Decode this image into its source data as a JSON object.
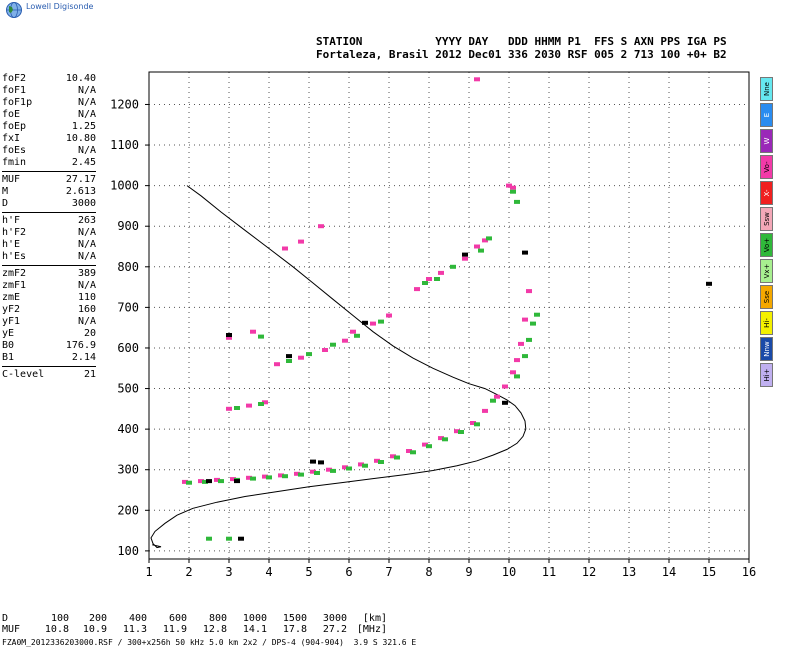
{
  "logo": {
    "text": "Lowell Digisonde",
    "icon": "globe-icon",
    "color": "#2a5db0"
  },
  "header": {
    "line1": "STATION           YYYY DAY   DDD HHMM P1  FFS S AXN PPS IGA PS",
    "line2": "Fortaleza, Brasil 2012 Dec01 336 2030 RSF 005 2 713 100 +0+ B2"
  },
  "params": [
    [
      {
        "name": "foF2",
        "value": "10.40"
      },
      {
        "name": "foF1",
        "value": "N/A"
      },
      {
        "name": "foF1p",
        "value": "N/A"
      },
      {
        "name": "foE",
        "value": "N/A"
      },
      {
        "name": "foEp",
        "value": "1.25"
      },
      {
        "name": "fxI",
        "value": "10.80"
      },
      {
        "name": "foEs",
        "value": "N/A"
      },
      {
        "name": "fmin",
        "value": "2.45"
      }
    ],
    [
      {
        "name": "MUF",
        "value": "27.17"
      },
      {
        "name": "M",
        "value": "2.613"
      },
      {
        "name": "D",
        "value": "3000"
      }
    ],
    [
      {
        "name": "h'F",
        "value": "263"
      },
      {
        "name": "h'F2",
        "value": "N/A"
      },
      {
        "name": "h'E",
        "value": "N/A"
      },
      {
        "name": "h'Es",
        "value": "N/A"
      }
    ],
    [
      {
        "name": "zmF2",
        "value": "389"
      },
      {
        "name": "zmF1",
        "value": "N/A"
      },
      {
        "name": "zmE",
        "value": "110"
      },
      {
        "name": "yF2",
        "value": "160"
      },
      {
        "name": "yF1",
        "value": "N/A"
      },
      {
        "name": "yE",
        "value": "20"
      },
      {
        "name": "B0",
        "value": "176.9"
      },
      {
        "name": "B1",
        "value": "2.14"
      }
    ],
    [
      {
        "name": "C-level",
        "value": "21"
      }
    ]
  ],
  "legend": [
    {
      "label": "Nne",
      "color": "#66e8f0"
    },
    {
      "label": "E",
      "color": "#2a8cf0"
    },
    {
      "label": "W",
      "color": "#9a28b8"
    },
    {
      "label": "Vo-",
      "color": "#f23aa8"
    },
    {
      "label": "X-",
      "color": "#f02020"
    },
    {
      "label": "Ssw",
      "color": "#f4a8b8"
    },
    {
      "label": "Vo+",
      "color": "#2fb83a"
    },
    {
      "label": "Vx+",
      "color": "#a8f090"
    },
    {
      "label": "Sse",
      "color": "#f4a800"
    },
    {
      "label": "Hi-",
      "color": "#f4f000"
    },
    {
      "label": "Nnw",
      "color": "#1a4aa8"
    },
    {
      "label": "Hi+",
      "color": "#c0b0f0"
    }
  ],
  "chart_data": {
    "type": "scatter",
    "title": "",
    "xlabel": "",
    "ylabel": "",
    "xlim": [
      1,
      16
    ],
    "ylim": [
      80,
      1280
    ],
    "x_ticks": [
      "1",
      "2",
      "3",
      "4",
      "5",
      "6",
      "7",
      "8",
      "9",
      "10",
      "11",
      "12",
      "13",
      "14",
      "15",
      "16"
    ],
    "y_ticks": [
      "100",
      "200",
      "300",
      "400",
      "500",
      "600",
      "700",
      "800",
      "900",
      "1000",
      "1100",
      "1200"
    ],
    "grid": "dotted",
    "legend_position": "right",
    "series": [
      {
        "color": "#f23aa8",
        "points": [
          [
            1.9,
            270
          ],
          [
            2.3,
            272
          ],
          [
            2.7,
            275
          ],
          [
            3.1,
            277
          ],
          [
            3.5,
            280
          ],
          [
            3.9,
            283
          ],
          [
            4.3,
            286
          ],
          [
            4.7,
            290
          ],
          [
            5.1,
            295
          ],
          [
            5.5,
            300
          ],
          [
            5.9,
            306
          ],
          [
            6.3,
            313
          ],
          [
            6.7,
            322
          ],
          [
            7.1,
            333
          ],
          [
            7.5,
            346
          ],
          [
            7.9,
            362
          ],
          [
            8.3,
            378
          ],
          [
            8.7,
            395
          ],
          [
            9.1,
            415
          ],
          [
            9.4,
            445
          ],
          [
            9.7,
            480
          ],
          [
            9.9,
            505
          ],
          [
            10.1,
            540
          ],
          [
            10.2,
            570
          ],
          [
            10.3,
            610
          ],
          [
            10.4,
            670
          ],
          [
            10.5,
            740
          ],
          [
            3.0,
            450
          ],
          [
            3.5,
            458
          ],
          [
            3.9,
            466
          ],
          [
            4.2,
            560
          ],
          [
            4.8,
            576
          ],
          [
            5.4,
            595
          ],
          [
            5.9,
            618
          ],
          [
            6.1,
            640
          ],
          [
            6.6,
            660
          ],
          [
            7.0,
            680
          ],
          [
            7.7,
            745
          ],
          [
            8.0,
            770
          ],
          [
            8.3,
            785
          ],
          [
            8.9,
            820
          ],
          [
            9.2,
            850
          ],
          [
            9.4,
            865
          ],
          [
            3.0,
            625
          ],
          [
            3.6,
            640
          ],
          [
            4.4,
            845
          ],
          [
            4.8,
            862
          ],
          [
            5.3,
            900
          ],
          [
            9.2,
            1262
          ],
          [
            10.0,
            1000
          ],
          [
            10.1,
            995
          ]
        ]
      },
      {
        "color": "#2fb83a",
        "points": [
          [
            2.0,
            268
          ],
          [
            2.4,
            270
          ],
          [
            2.8,
            272
          ],
          [
            3.2,
            275
          ],
          [
            3.6,
            278
          ],
          [
            4.0,
            281
          ],
          [
            4.4,
            284
          ],
          [
            4.8,
            288
          ],
          [
            5.2,
            292
          ],
          [
            5.6,
            297
          ],
          [
            6.0,
            303
          ],
          [
            6.4,
            310
          ],
          [
            6.8,
            319
          ],
          [
            7.2,
            330
          ],
          [
            7.6,
            343
          ],
          [
            8.0,
            358
          ],
          [
            8.4,
            375
          ],
          [
            8.8,
            393
          ],
          [
            9.2,
            412
          ],
          [
            9.6,
            470
          ],
          [
            10.2,
            530
          ],
          [
            10.4,
            580
          ],
          [
            10.5,
            620
          ],
          [
            10.6,
            660
          ],
          [
            3.2,
            452
          ],
          [
            3.8,
            462
          ],
          [
            4.5,
            568
          ],
          [
            5.0,
            585
          ],
          [
            5.6,
            608
          ],
          [
            6.2,
            630
          ],
          [
            6.8,
            665
          ],
          [
            7.9,
            760
          ],
          [
            8.2,
            770
          ],
          [
            8.6,
            800
          ],
          [
            9.3,
            840
          ],
          [
            9.5,
            870
          ],
          [
            3.8,
            628
          ],
          [
            10.1,
            985
          ],
          [
            10.2,
            960
          ],
          [
            10.7,
            682
          ],
          [
            2.5,
            130
          ],
          [
            3.0,
            130
          ]
        ]
      },
      {
        "color": "#000000",
        "points": [
          [
            2.5,
            272
          ],
          [
            3.2,
            272
          ],
          [
            5.1,
            320
          ],
          [
            5.3,
            318
          ],
          [
            3.0,
            632
          ],
          [
            4.5,
            580
          ],
          [
            6.4,
            662
          ],
          [
            8.9,
            830
          ],
          [
            9.9,
            465
          ],
          [
            3.3,
            130
          ],
          [
            10.4,
            835
          ],
          [
            15.0,
            758
          ]
        ]
      }
    ],
    "profile": {
      "color": "#000000",
      "x": [
        1.95,
        2.3,
        2.8,
        3.4,
        4.0,
        4.6,
        5.1,
        5.6,
        6.1,
        6.6,
        7.1,
        7.6,
        8.1,
        8.6,
        9.0,
        9.4,
        9.7,
        9.95,
        10.15,
        10.3,
        10.4,
        10.42,
        10.35,
        10.2,
        9.95,
        9.6,
        9.2,
        8.7,
        8.1,
        7.4,
        6.6,
        5.8,
        5.0,
        4.2,
        3.4,
        2.7,
        2.1,
        1.7,
        1.4,
        1.15,
        1.05,
        1.1,
        1.2,
        1.3,
        1.08
      ],
      "y": [
        1000,
        975,
        935,
        890,
        845,
        800,
        760,
        720,
        680,
        640,
        605,
        575,
        550,
        528,
        512,
        500,
        485,
        472,
        458,
        440,
        420,
        400,
        382,
        365,
        350,
        336,
        322,
        310,
        298,
        288,
        278,
        268,
        258,
        246,
        234,
        220,
        205,
        188,
        168,
        148,
        132,
        118,
        108,
        110,
        115
      ]
    }
  },
  "table": {
    "rows": [
      {
        "label": "D",
        "values": [
          "100",
          "200",
          "400",
          "600",
          "800",
          "1000",
          "1500",
          "3000",
          "[km]"
        ]
      },
      {
        "label": "MUF",
        "values": [
          "10.8",
          "10.9",
          "11.3",
          "11.9",
          "12.8",
          "14.1",
          "17.8",
          "27.2",
          "[MHz]"
        ]
      }
    ]
  },
  "footer": "FZA0M_2012336203000.RSF / 300+x256h 50 kHz 5.0 km 2x2 / DPS-4 (904-904)  3.9 S 321.6 E"
}
